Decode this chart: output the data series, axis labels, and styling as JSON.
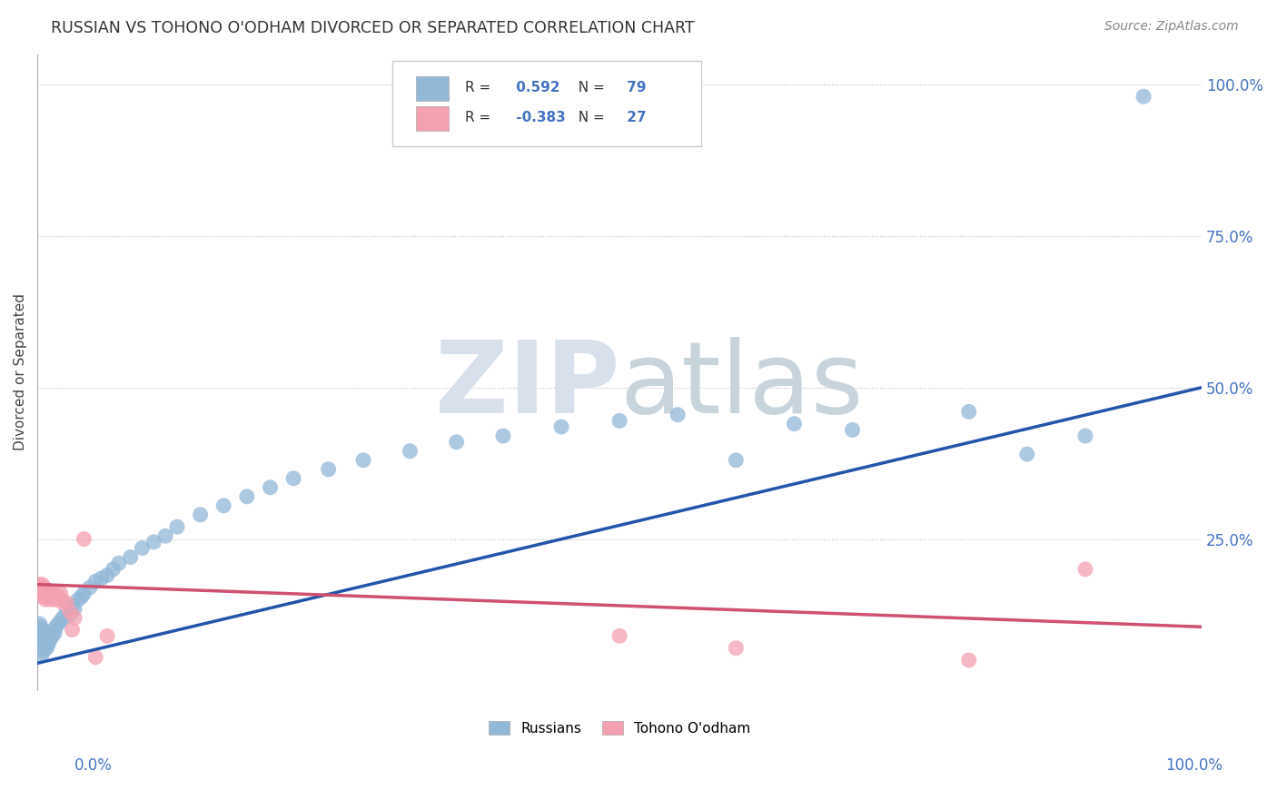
{
  "title": "RUSSIAN VS TOHONO O'ODHAM DIVORCED OR SEPARATED CORRELATION CHART",
  "source": "Source: ZipAtlas.com",
  "ylabel": "Divorced or Separated",
  "russian_R": 0.592,
  "russian_N": 79,
  "tohono_R": -0.383,
  "tohono_N": 27,
  "russian_color": "#92b8d8",
  "tohono_color": "#f4a0b0",
  "russian_line_color": "#2255aa",
  "tohono_line_color": "#d05070",
  "background_color": "#ffffff",
  "grid_color": "#cccccc",
  "title_color": "#333333",
  "axis_label_color": "#4472c4",
  "watermark_zip_color": "#d8e0ec",
  "watermark_atlas_color": "#c8d4dc",
  "xlim": [
    0.0,
    1.0
  ],
  "ylim": [
    0.0,
    1.05
  ],
  "russian_x": [
    0.001,
    0.001,
    0.002,
    0.002,
    0.002,
    0.002,
    0.003,
    0.003,
    0.003,
    0.003,
    0.003,
    0.004,
    0.004,
    0.004,
    0.004,
    0.005,
    0.005,
    0.005,
    0.005,
    0.006,
    0.006,
    0.006,
    0.007,
    0.007,
    0.007,
    0.008,
    0.008,
    0.008,
    0.009,
    0.009,
    0.01,
    0.01,
    0.011,
    0.012,
    0.013,
    0.014,
    0.015,
    0.016,
    0.018,
    0.02,
    0.022,
    0.025,
    0.028,
    0.03,
    0.032,
    0.035,
    0.038,
    0.04,
    0.045,
    0.05,
    0.055,
    0.06,
    0.065,
    0.07,
    0.08,
    0.09,
    0.1,
    0.11,
    0.12,
    0.14,
    0.16,
    0.18,
    0.2,
    0.22,
    0.25,
    0.28,
    0.32,
    0.36,
    0.4,
    0.45,
    0.5,
    0.55,
    0.6,
    0.65,
    0.7,
    0.8,
    0.85,
    0.9,
    0.95
  ],
  "russian_y": [
    0.085,
    0.095,
    0.08,
    0.09,
    0.1,
    0.11,
    0.075,
    0.085,
    0.095,
    0.105,
    0.075,
    0.08,
    0.09,
    0.1,
    0.06,
    0.075,
    0.085,
    0.095,
    0.065,
    0.08,
    0.09,
    0.07,
    0.075,
    0.085,
    0.095,
    0.08,
    0.09,
    0.07,
    0.075,
    0.085,
    0.08,
    0.09,
    0.085,
    0.095,
    0.09,
    0.1,
    0.095,
    0.105,
    0.11,
    0.115,
    0.12,
    0.13,
    0.125,
    0.14,
    0.135,
    0.15,
    0.155,
    0.16,
    0.17,
    0.18,
    0.185,
    0.19,
    0.2,
    0.21,
    0.22,
    0.235,
    0.245,
    0.255,
    0.27,
    0.29,
    0.305,
    0.32,
    0.335,
    0.35,
    0.365,
    0.38,
    0.395,
    0.41,
    0.42,
    0.435,
    0.445,
    0.455,
    0.38,
    0.44,
    0.43,
    0.46,
    0.39,
    0.42,
    0.98
  ],
  "tohono_x": [
    0.001,
    0.002,
    0.003,
    0.004,
    0.005,
    0.006,
    0.007,
    0.008,
    0.009,
    0.01,
    0.012,
    0.014,
    0.016,
    0.018,
    0.02,
    0.022,
    0.025,
    0.028,
    0.03,
    0.032,
    0.04,
    0.05,
    0.06,
    0.5,
    0.6,
    0.8,
    0.9
  ],
  "tohono_y": [
    0.175,
    0.16,
    0.165,
    0.175,
    0.155,
    0.17,
    0.15,
    0.165,
    0.155,
    0.165,
    0.15,
    0.16,
    0.15,
    0.155,
    0.16,
    0.145,
    0.145,
    0.13,
    0.1,
    0.12,
    0.25,
    0.055,
    0.09,
    0.09,
    0.07,
    0.05,
    0.2
  ],
  "blue_line_x0": 0.0,
  "blue_line_y0": 0.045,
  "blue_line_x1": 1.0,
  "blue_line_y1": 0.5,
  "pink_line_x0": 0.0,
  "pink_line_y0": 0.175,
  "pink_line_x1": 1.0,
  "pink_line_y1": 0.105
}
